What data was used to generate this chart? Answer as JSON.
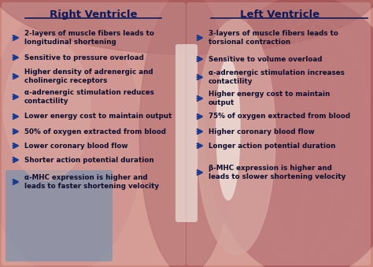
{
  "title_left": "Right Ventricle",
  "title_right": "Left Ventricle",
  "title_color": "#0d1a5c",
  "arrow_color": "#1a3a8f",
  "text_color": "#0d0d2e",
  "bg_color": "#c9837c",
  "left_items": [
    "2-layers of muscle fibers leads to\nlongitudinal shortening",
    "Sensitive to pressure overload",
    "Higher density of adrenergic and\ncholinergic receptors",
    "α-adrenergic stimulation reduces\ncontactility",
    "Lower energy cost to maintain output",
    "50% of oxygen extracted from blood",
    "Lower coronary blood flow",
    "Shorter action potential duration",
    "α-MHC expression is higher and\nleads to faster shortening velocity"
  ],
  "right_items": [
    "3-layers of muscle fibers leads to\ntorsional contraction",
    "Sensitive to volume overload",
    "α-adrenergic stimulation increases\ncontactility",
    "Higher energy cost to maintain\noutput",
    "75% of oxygen extracted from blood",
    "Higher coronary blood flow",
    "Longer action potential duration",
    "β-MHC expression is higher and\nleads to slower shortening velocity"
  ],
  "figsize": [
    4.74,
    3.39
  ],
  "dpi": 100,
  "left_y": [
    291,
    266,
    242,
    216,
    191,
    172,
    154,
    136,
    108
  ],
  "right_y": [
    291,
    264,
    241,
    214,
    191,
    172,
    154,
    120
  ]
}
